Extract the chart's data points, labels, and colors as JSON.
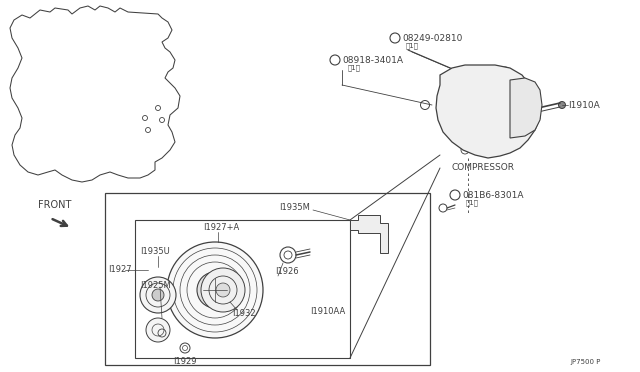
{
  "bg_color": "#ffffff",
  "line_color": "#404040",
  "part_number_ref": "JP7500 P",
  "labels": {
    "compressor": "COMPRESSOR",
    "11910a": "I1910A",
    "081b6_line1": "®081B6-8301A",
    "081b6_line2": "（1）",
    "08249_line1": "®08249-02810",
    "08249_line2": "（1）",
    "08918_line1": "®08918-3401A",
    "08918_line2": "（1）",
    "11927": "I1927",
    "11935m": "I1935M",
    "11927a": "I1927+A",
    "11935u": "I1935U",
    "11925m": "I1925M",
    "11926": "I1926",
    "11932": "I1932",
    "11929": "I1929",
    "11910aa": "I1910AA"
  },
  "font_size": 6.0,
  "font_size_small": 5.0
}
